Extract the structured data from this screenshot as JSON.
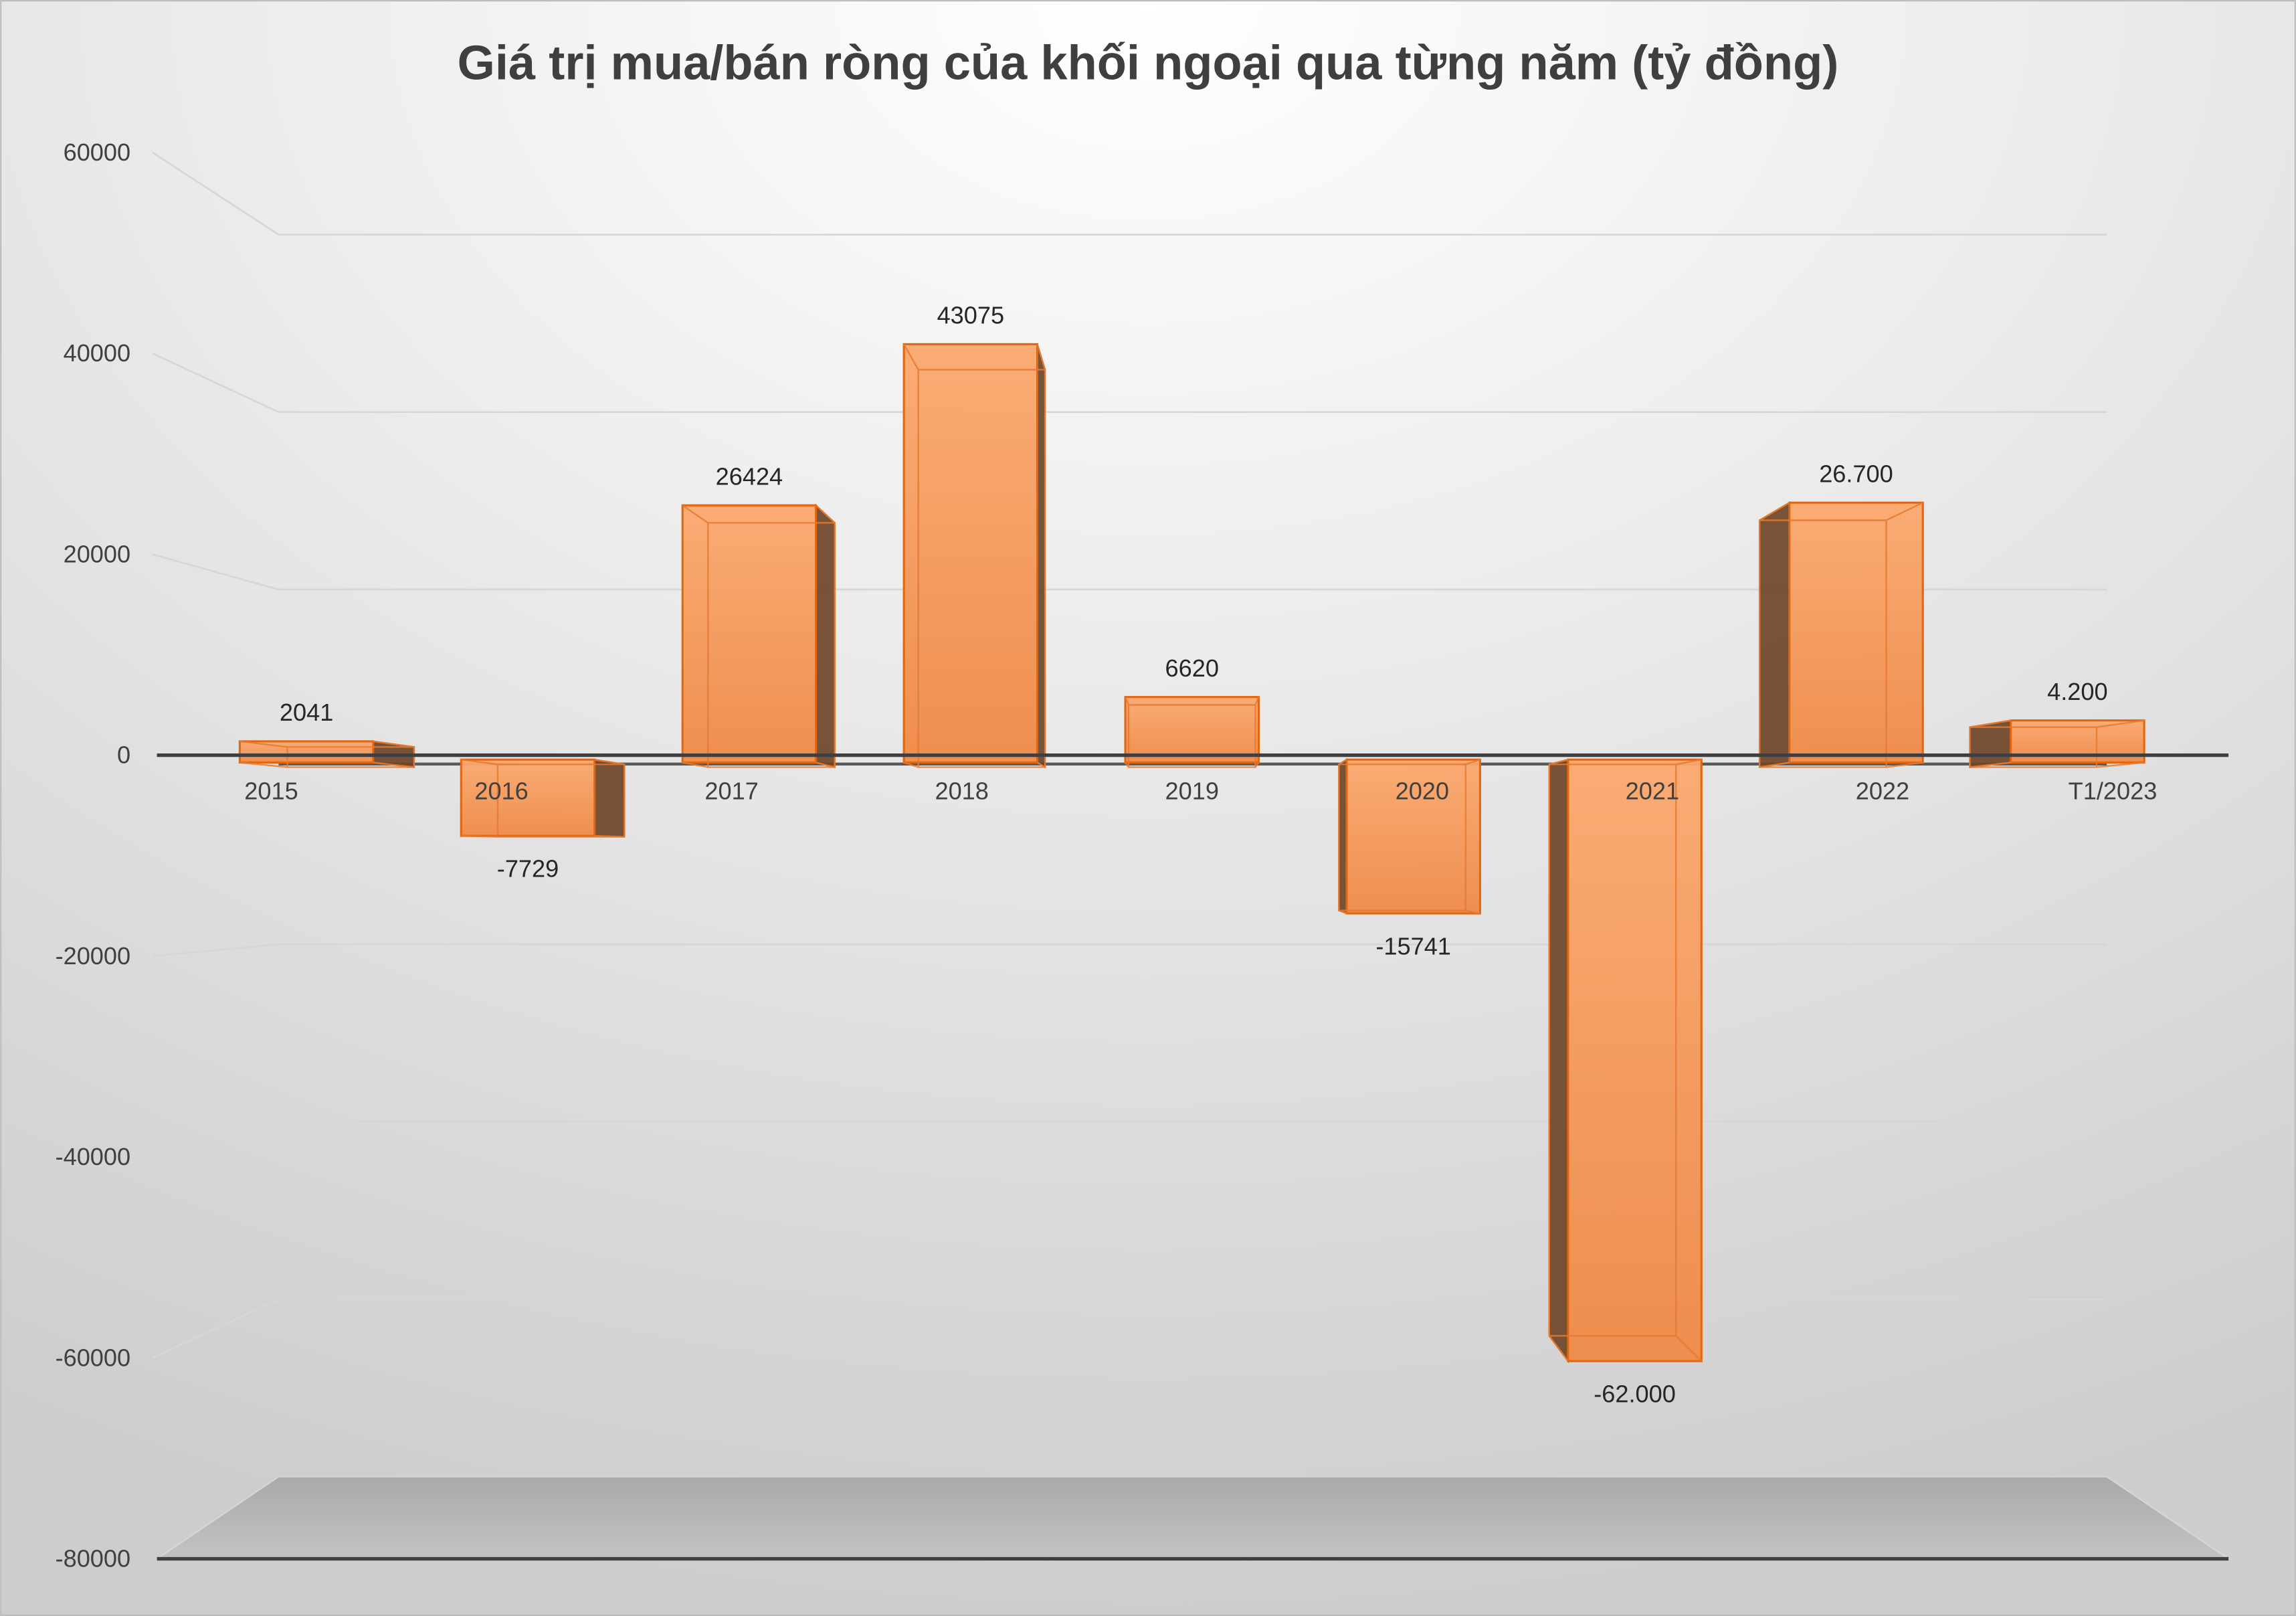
{
  "chart_data": {
    "type": "bar",
    "three_d": true,
    "title": "Giá trị mua/bán ròng của khối ngoại qua từng năm (tỷ đồng)",
    "categories": [
      "2015",
      "2016",
      "2017",
      "2018",
      "2019",
      "2020",
      "2021",
      "2022",
      "T1/2023"
    ],
    "values": [
      2041,
      -7729,
      26424,
      43075,
      6620,
      -15741,
      -62000,
      26700,
      4200
    ],
    "data_labels": [
      "2041",
      "-7729",
      "26424",
      "43075",
      "6620",
      "-15741",
      "-62.000",
      "26.700",
      "4.200"
    ],
    "yticks": [
      60000,
      40000,
      20000,
      0,
      -20000,
      -40000,
      -60000,
      -80000
    ],
    "ylim": [
      -80000,
      60000
    ],
    "grid": true,
    "colors": {
      "bar_fill_top": "#fba86e",
      "bar_fill_bottom": "#ef8a47",
      "bar_outline": "#e2660f",
      "bar_inner_edge": "#e47a33",
      "bar_side": "#6f4527",
      "axis_line": "#3f3f3f",
      "gridline": "#d6d6d6",
      "floor_back": "#a9a9a9",
      "floor_front": "#c3c3c3",
      "background_center": "#ffffff",
      "background_edge": "#cdcdcd"
    }
  }
}
